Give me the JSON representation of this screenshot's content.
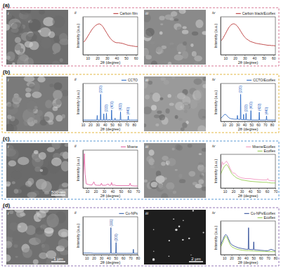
{
  "figure": {
    "rows": [
      {
        "label": "(a)",
        "color": "#d46a8a"
      },
      {
        "label": "(b)",
        "color": "#e0b030"
      },
      {
        "label": "(c)",
        "color": "#4a90d0",
        "scale_bar_i": "500 nm"
      },
      {
        "label": "(d)",
        "color": "#8a6ab0",
        "scale_bar_i": "1 μm",
        "scale_bar_iii": "2 μm"
      }
    ],
    "panel_numerals": [
      "i",
      "ii",
      "iii",
      "iv"
    ]
  },
  "chart_data": [
    {
      "type": "line",
      "x_label": "2θ (degree)",
      "y_label": "Intensity (a.u.)",
      "tick_labels": "x",
      "legend": "upper right",
      "xlim": [
        5,
        62
      ],
      "xticks": [
        10,
        20,
        30,
        40,
        50,
        60
      ],
      "ylim": [
        0,
        120
      ],
      "x": [
        6,
        8,
        10,
        12,
        14,
        16,
        18,
        20,
        22,
        24,
        26,
        28,
        30,
        32,
        34,
        36,
        38,
        40,
        42,
        44,
        46,
        48,
        50,
        52,
        54,
        56,
        58,
        60,
        62
      ],
      "series": [
        {
          "name": "Carbon film",
          "color": "#b22222",
          "values": [
            40,
            48,
            58,
            68,
            78,
            86,
            92,
            96,
            98,
            95,
            88,
            78,
            68,
            58,
            50,
            44,
            40,
            38,
            38,
            37,
            36,
            34,
            32,
            30,
            29,
            28,
            27,
            26,
            26
          ]
        }
      ]
    },
    {
      "type": "line",
      "x_label": "2θ (degree)",
      "y_label": "Intensity (a.u.)",
      "tick_labels": "x",
      "legend": "upper right",
      "xlim": [
        5,
        62
      ],
      "xticks": [
        10,
        20,
        30,
        40,
        50,
        60
      ],
      "ylim": [
        0,
        120
      ],
      "x": [
        6,
        8,
        10,
        12,
        14,
        16,
        18,
        20,
        22,
        24,
        26,
        28,
        30,
        32,
        34,
        36,
        38,
        40,
        42,
        44,
        46,
        48,
        50,
        52,
        54,
        56,
        58,
        60,
        62
      ],
      "series": [
        {
          "name": "Carbon black/Ecoflex",
          "color": "#b22222",
          "values": [
            45,
            55,
            66,
            78,
            88,
            95,
            98,
            97,
            92,
            84,
            74,
            64,
            56,
            50,
            46,
            42,
            40,
            38,
            36,
            35,
            34,
            33,
            32,
            31,
            30,
            30,
            29,
            29,
            28
          ]
        }
      ]
    },
    {
      "type": "line",
      "x_label": "2θ (degree)",
      "y_label": "Intensity (a.u.)",
      "tick_labels": "x",
      "legend": "upper right",
      "xlim": [
        10,
        85
      ],
      "xticks": [
        10,
        20,
        30,
        40,
        50,
        60,
        70,
        80
      ],
      "ylim": [
        0,
        140
      ],
      "x": [
        10,
        15,
        20,
        25,
        29.1,
        29.6,
        30.1,
        33.8,
        34.3,
        34.8,
        38.1,
        38.6,
        39.1,
        41.7,
        42.2,
        42.7,
        45.4,
        45.9,
        46.4,
        48.8,
        49.3,
        49.8,
        53.5,
        54,
        54.5,
        61,
        61.5,
        62,
        71.6,
        72.1,
        72.6,
        75,
        80,
        85
      ],
      "series": [
        {
          "name": "CCTO",
          "color": "#1f5fbf",
          "values": [
            5,
            5,
            5,
            5,
            5,
            22,
            5,
            5,
            100,
            5,
            5,
            28,
            5,
            5,
            30,
            5,
            5,
            8,
            5,
            5,
            42,
            5,
            5,
            12,
            5,
            5,
            35,
            5,
            5,
            20,
            5,
            5,
            5,
            5
          ]
        }
      ],
      "annotations": [
        {
          "x": 34.3,
          "y": 100,
          "text": "(220)"
        },
        {
          "x": 42.2,
          "y": 30,
          "text": "(222)"
        },
        {
          "x": 49.3,
          "y": 42,
          "text": "(400)"
        },
        {
          "x": 61.5,
          "y": 35,
          "text": "(422)"
        },
        {
          "x": 72.1,
          "y": 20,
          "text": "(440)"
        }
      ]
    },
    {
      "type": "line",
      "x_label": "2θ (degree)",
      "y_label": "Intensity (a.u.)",
      "tick_labels": "x",
      "legend": "upper right",
      "xlim": [
        5,
        85
      ],
      "xticks": [
        10,
        20,
        30,
        40,
        50,
        60,
        70,
        80
      ],
      "ylim": [
        0,
        140
      ],
      "x": [
        5,
        8,
        10,
        12,
        14,
        16,
        18,
        20,
        25,
        29.1,
        29.6,
        30.1,
        33.8,
        34.3,
        34.8,
        38.1,
        38.6,
        39.1,
        41.7,
        42.2,
        42.7,
        48.8,
        49.3,
        49.8,
        61,
        61.5,
        62,
        71.6,
        72.1,
        72.6,
        78,
        85
      ],
      "series": [
        {
          "name": "CCTO/Ecoflex",
          "color": "#1f5fbf",
          "values": [
            10,
            18,
            24,
            26,
            22,
            16,
            12,
            10,
            8,
            8,
            22,
            8,
            7,
            100,
            7,
            6,
            26,
            6,
            6,
            30,
            6,
            5,
            40,
            5,
            5,
            34,
            5,
            5,
            20,
            5,
            5,
            5
          ]
        }
      ],
      "annotations": [
        {
          "x": 34.3,
          "y": 100,
          "text": "(220)"
        },
        {
          "x": 42.2,
          "y": 30,
          "text": "(222)"
        },
        {
          "x": 49.3,
          "y": 40,
          "text": "(400)"
        },
        {
          "x": 61.5,
          "y": 34,
          "text": "(422)"
        },
        {
          "x": 72.1,
          "y": 20,
          "text": "(440)"
        }
      ]
    },
    {
      "type": "line",
      "x_label": "2θ (degree)",
      "y_label": "Intensity (a.u.)",
      "tick_labels": "x",
      "legend": "upper right",
      "xlim": [
        5,
        70
      ],
      "xticks": [
        10,
        20,
        30,
        40,
        50,
        60,
        70
      ],
      "ylim": [
        0,
        110
      ],
      "x": [
        5,
        6,
        6.8,
        7.6,
        9,
        12,
        14,
        16,
        18,
        19.5,
        22,
        26,
        27,
        28,
        32,
        35,
        36,
        38,
        39,
        40,
        42,
        45,
        50,
        55,
        60,
        61,
        62,
        66,
        70
      ],
      "series": [
        {
          "name": "Mxene",
          "color": "#e0559a",
          "values": [
            20,
            60,
            100,
            40,
            12,
            10,
            9,
            9,
            18,
            9,
            8,
            8,
            14,
            8,
            8,
            12,
            8,
            8,
            16,
            8,
            9,
            7,
            7,
            7,
            7,
            14,
            7,
            6,
            6
          ]
        }
      ]
    },
    {
      "type": "line",
      "x_label": "2θ (degree)",
      "y_label": "Intensity (a.u.)",
      "tick_labels": "x",
      "legend": "upper right",
      "xlim": [
        5,
        70
      ],
      "xticks": [
        10,
        20,
        30,
        40,
        50,
        60,
        70
      ],
      "ylim": [
        0,
        100
      ],
      "x": [
        5,
        6,
        7,
        8,
        10,
        12,
        14,
        16,
        18,
        20,
        22,
        24,
        26,
        28,
        30,
        35,
        40,
        45,
        50,
        55,
        60,
        61,
        62,
        65,
        70
      ],
      "series": [
        {
          "name": "Mxene/Ecoflex",
          "color": "#f08cba",
          "values": [
            50,
            62,
            78,
            70,
            74,
            80,
            72,
            60,
            50,
            44,
            44,
            38,
            34,
            32,
            30,
            28,
            28,
            26,
            25,
            24,
            24,
            28,
            23,
            22,
            21
          ]
        },
        {
          "name": "Ecoflex",
          "color": "#8cc63f",
          "values": [
            40,
            46,
            52,
            58,
            66,
            70,
            64,
            54,
            44,
            38,
            34,
            30,
            28,
            26,
            24,
            22,
            20,
            19,
            18,
            17,
            17,
            16,
            16,
            15,
            15
          ]
        }
      ]
    },
    {
      "type": "line",
      "x_label": "2θ (degree)",
      "y_label": "Intensity (a.u.)",
      "tick_labels": "x",
      "legend": "upper right",
      "xlim": [
        5,
        80
      ],
      "xticks": [
        10,
        20,
        30,
        40,
        50,
        60,
        70,
        80
      ],
      "ylim": [
        0,
        140
      ],
      "x": [
        5,
        10,
        15,
        20,
        25,
        30,
        35,
        40,
        42.8,
        43.3,
        43.8,
        49.9,
        50.4,
        50.9,
        55,
        60,
        65,
        70,
        73.6,
        74.1,
        74.6,
        77,
        80
      ],
      "series": [
        {
          "name": "Cu-NPs",
          "color": "#1f4fa0",
          "values": [
            6,
            6,
            6,
            5,
            5,
            5,
            5,
            5,
            5,
            100,
            5,
            5,
            45,
            5,
            5,
            5,
            5,
            5,
            5,
            20,
            5,
            5,
            5
          ]
        }
      ],
      "annotations": [
        {
          "x": 43.3,
          "y": 100,
          "text": "(111)"
        },
        {
          "x": 50.4,
          "y": 45,
          "text": "(200)"
        }
      ]
    },
    {
      "type": "line",
      "x_label": "2θ (degree)",
      "y_label": "Intensity (a.u.)",
      "tick_labels": "x",
      "legend": "upper right",
      "xlim": [
        5,
        80
      ],
      "xticks": [
        10,
        20,
        30,
        40,
        50,
        60,
        70,
        80
      ],
      "ylim": [
        0,
        100
      ],
      "x": [
        5,
        8,
        10,
        12,
        14,
        16,
        18,
        20,
        25,
        30,
        35,
        40,
        42.8,
        43.3,
        43.8,
        49.9,
        50.4,
        50.9,
        55,
        60,
        65,
        70,
        74.1,
        80
      ],
      "series": [
        {
          "name": "Cu-NPs/Ecoflex",
          "color": "#1f3f8f",
          "values": [
            28,
            44,
            54,
            60,
            56,
            46,
            36,
            30,
            24,
            20,
            18,
            16,
            16,
            80,
            16,
            15,
            38,
            15,
            14,
            13,
            12,
            12,
            16,
            11
          ]
        },
        {
          "name": "Ecoflex",
          "color": "#8cc63f",
          "values": [
            22,
            36,
            48,
            55,
            50,
            40,
            30,
            24,
            18,
            15,
            13,
            12,
            12,
            12,
            12,
            11,
            11,
            11,
            10,
            10,
            10,
            9,
            9,
            9
          ]
        }
      ]
    }
  ]
}
